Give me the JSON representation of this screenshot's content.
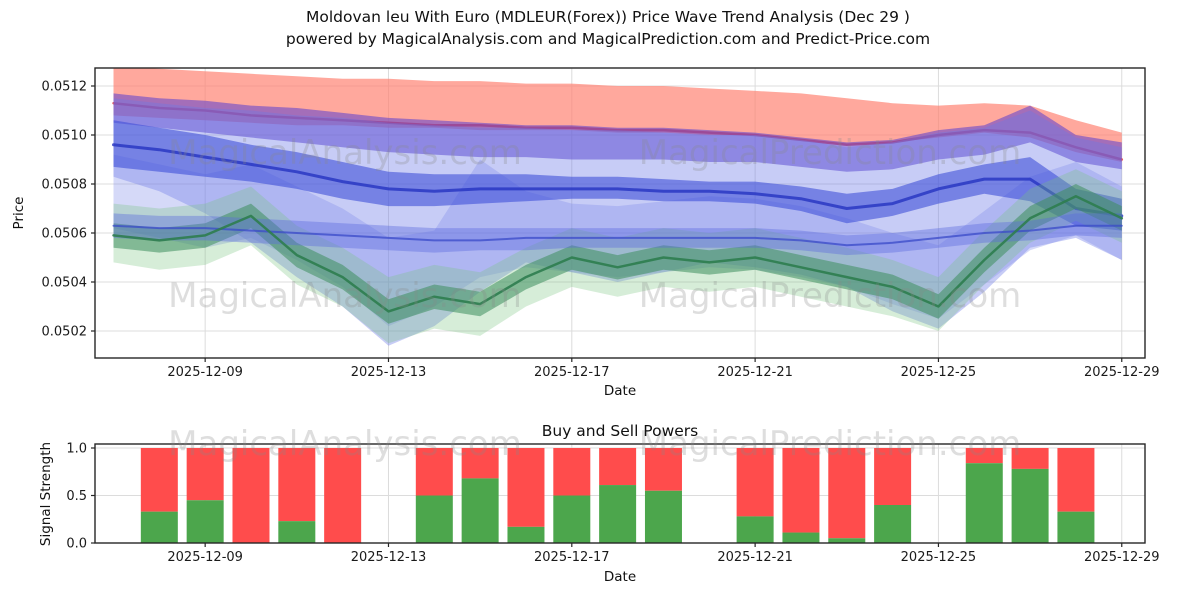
{
  "title": {
    "line1": "Moldovan leu With Euro (MDLEUR(Forex)) Price Wave Trend Analysis (Dec 29 )",
    "line2": "powered by MagicalAnalysis.com and MagicalPrediction.com and Predict-Price.com"
  },
  "watermarks": {
    "left_text": "MagicalAnalysis.com",
    "right_text": "MagicalPrediction.com"
  },
  "chart_data": [
    {
      "type": "area",
      "name": "price-wave-trend",
      "axis": {
        "ylabel": "Price",
        "xlabel": "Date"
      },
      "ylim": [
        0.0501,
        0.05127
      ],
      "grid": true,
      "x_dates": [
        "2025-12-07",
        "2025-12-08",
        "2025-12-09",
        "2025-12-10",
        "2025-12-11",
        "2025-12-12",
        "2025-12-13",
        "2025-12-14",
        "2025-12-15",
        "2025-12-16",
        "2025-12-17",
        "2025-12-18",
        "2025-12-19",
        "2025-12-20",
        "2025-12-21",
        "2025-12-22",
        "2025-12-23",
        "2025-12-24",
        "2025-12-25",
        "2025-12-26",
        "2025-12-27",
        "2025-12-28",
        "2025-12-29"
      ],
      "xticks": [
        {
          "i": 2,
          "label": "2025-12-09"
        },
        {
          "i": 6,
          "label": "2025-12-13"
        },
        {
          "i": 10,
          "label": "2025-12-17"
        },
        {
          "i": 14,
          "label": "2025-12-21"
        },
        {
          "i": 18,
          "label": "2025-12-25"
        },
        {
          "i": 22,
          "label": "2025-12-29"
        }
      ],
      "yticks": [
        {
          "v": 0.0512,
          "label": "0.0512"
        },
        {
          "v": 0.051,
          "label": "0.0510"
        },
        {
          "v": 0.0508,
          "label": "0.0508"
        },
        {
          "v": 0.0506,
          "label": "0.0506"
        },
        {
          "v": 0.0504,
          "label": "0.0504"
        },
        {
          "v": 0.0502,
          "label": "0.0502"
        }
      ],
      "layers": [
        {
          "kind": "band",
          "name": "resistance-band-red",
          "color": "#ff7f6e",
          "opacity": 0.68,
          "upper": [
            0.05128,
            0.05127,
            0.05126,
            0.05125,
            0.05124,
            0.05123,
            0.05123,
            0.05122,
            0.05122,
            0.05121,
            0.05121,
            0.0512,
            0.0512,
            0.05119,
            0.05118,
            0.05117,
            0.05115,
            0.05113,
            0.05112,
            0.05113,
            0.05112,
            0.05106,
            0.05101
          ],
          "lower": [
            0.05108,
            0.05107,
            0.05106,
            0.05105,
            0.05104,
            0.05104,
            0.05103,
            0.05103,
            0.05102,
            0.05102,
            0.05102,
            0.05101,
            0.05101,
            0.051,
            0.051,
            0.05098,
            0.05096,
            0.05097,
            0.05099,
            0.05101,
            0.05099,
            0.05093,
            0.05089
          ]
        },
        {
          "kind": "line",
          "name": "red-trend-line",
          "color": "#e84040",
          "width": 2.5,
          "opacity": 0.85,
          "values": [
            0.05113,
            0.05111,
            0.0511,
            0.05108,
            0.05107,
            0.05106,
            0.05105,
            0.05104,
            0.05104,
            0.05103,
            0.05103,
            0.05102,
            0.05102,
            0.05101,
            0.051,
            0.05098,
            0.05096,
            0.05097,
            0.051,
            0.05102,
            0.05101,
            0.05095,
            0.0509
          ]
        },
        {
          "kind": "band",
          "name": "violet-band",
          "color": "#6847cc",
          "opacity": 0.6,
          "upper": [
            0.05117,
            0.05115,
            0.05114,
            0.05112,
            0.05111,
            0.05109,
            0.05107,
            0.05106,
            0.05105,
            0.05104,
            0.05104,
            0.05103,
            0.05103,
            0.05102,
            0.05101,
            0.05099,
            0.05097,
            0.05098,
            0.05102,
            0.05104,
            0.05112,
            0.051,
            0.05097
          ],
          "lower": [
            0.05105,
            0.05103,
            0.05101,
            0.05099,
            0.05097,
            0.05095,
            0.05093,
            0.05092,
            0.05091,
            0.05091,
            0.0509,
            0.0509,
            0.0509,
            0.05089,
            0.05089,
            0.05087,
            0.05085,
            0.05086,
            0.0509,
            0.05092,
            0.05097,
            0.05089,
            0.05086
          ]
        },
        {
          "kind": "band",
          "name": "blue-band-wide",
          "color": "#6b79e8",
          "opacity": 0.38,
          "upper": [
            0.05115,
            0.05113,
            0.05111,
            0.0511,
            0.05108,
            0.05107,
            0.05105,
            0.05104,
            0.05103,
            0.05103,
            0.05102,
            0.05102,
            0.05101,
            0.051,
            0.051,
            0.05098,
            0.05095,
            0.05097,
            0.05101,
            0.05103,
            0.0511,
            0.05099,
            0.05095
          ],
          "lower": [
            0.05083,
            0.05077,
            0.05068,
            0.05056,
            0.05042,
            0.0503,
            0.05014,
            0.05022,
            0.05036,
            0.05048,
            0.05044,
            0.0504,
            0.05044,
            0.05048,
            0.05046,
            0.05043,
            0.05038,
            0.05028,
            0.05021,
            0.05036,
            0.05054,
            0.05058,
            0.05049
          ]
        },
        {
          "kind": "band",
          "name": "blue-band-mid",
          "color": "#7b88ea",
          "opacity": 0.32,
          "upper": [
            0.05092,
            0.05088,
            0.05084,
            0.05088,
            0.05079,
            0.0507,
            0.05058,
            0.05061,
            0.0509,
            0.05077,
            0.05072,
            0.05071,
            0.05073,
            0.05075,
            0.05074,
            0.05071,
            0.05066,
            0.0506,
            0.05055,
            0.05069,
            0.05083,
            0.05089,
            0.05079
          ],
          "lower": [
            0.05062,
            0.05058,
            0.05054,
            0.05058,
            0.05049,
            0.05038,
            0.05022,
            0.0503,
            0.05042,
            0.05046,
            0.05044,
            0.05042,
            0.05044,
            0.05046,
            0.05045,
            0.05042,
            0.05038,
            0.05031,
            0.05025,
            0.05039,
            0.05053,
            0.05059,
            0.05049
          ]
        },
        {
          "kind": "band",
          "name": "blue-band-core",
          "color": "#3f50d8",
          "opacity": 0.6,
          "upper": [
            0.05106,
            0.05103,
            0.051,
            0.05096,
            0.05093,
            0.05089,
            0.05085,
            0.05084,
            0.05084,
            0.05084,
            0.05083,
            0.05083,
            0.05082,
            0.05081,
            0.05081,
            0.05079,
            0.05076,
            0.05078,
            0.05084,
            0.05088,
            0.05091,
            0.05078,
            0.05074
          ],
          "lower": [
            0.05087,
            0.05085,
            0.05083,
            0.05081,
            0.05078,
            0.05074,
            0.05071,
            0.05071,
            0.05072,
            0.05073,
            0.05074,
            0.05074,
            0.05073,
            0.05073,
            0.05072,
            0.05069,
            0.05064,
            0.05067,
            0.05072,
            0.05076,
            0.05073,
            0.05063,
            0.05061
          ]
        },
        {
          "kind": "line",
          "name": "blue-trend-line",
          "color": "#2633c0",
          "width": 3,
          "opacity": 0.8,
          "values": [
            0.05096,
            0.05094,
            0.05091,
            0.05088,
            0.05085,
            0.05081,
            0.05078,
            0.05077,
            0.05078,
            0.05078,
            0.05078,
            0.05078,
            0.05077,
            0.05077,
            0.05076,
            0.05074,
            0.0507,
            0.05072,
            0.05078,
            0.05082,
            0.05082,
            0.0507,
            0.05067
          ]
        },
        {
          "kind": "band",
          "name": "green-band-wide",
          "color": "#77c47d",
          "opacity": 0.3,
          "upper": [
            0.05072,
            0.0507,
            0.05072,
            0.05079,
            0.05063,
            0.05054,
            0.05042,
            0.05047,
            0.05044,
            0.05054,
            0.05062,
            0.05058,
            0.05062,
            0.0506,
            0.05062,
            0.05058,
            0.05054,
            0.05049,
            0.05042,
            0.05061,
            0.05078,
            0.05086,
            0.05077
          ],
          "lower": [
            0.05048,
            0.05045,
            0.05047,
            0.05055,
            0.05039,
            0.0503,
            0.05015,
            0.05021,
            0.05018,
            0.0503,
            0.05038,
            0.05034,
            0.05038,
            0.05036,
            0.05038,
            0.05034,
            0.0503,
            0.05026,
            0.0502,
            0.05039,
            0.05056,
            0.05065,
            0.05056
          ]
        },
        {
          "kind": "band",
          "name": "green-band-core",
          "color": "#3e8e5e",
          "opacity": 0.55,
          "upper": [
            0.05064,
            0.05062,
            0.05064,
            0.05072,
            0.05056,
            0.05047,
            0.05033,
            0.05039,
            0.05036,
            0.05047,
            0.05055,
            0.05051,
            0.05055,
            0.05053,
            0.05055,
            0.05051,
            0.05047,
            0.05043,
            0.05035,
            0.05054,
            0.05071,
            0.0508,
            0.05071
          ],
          "lower": [
            0.05054,
            0.05052,
            0.05054,
            0.05062,
            0.05046,
            0.05037,
            0.05023,
            0.05029,
            0.05026,
            0.05037,
            0.05045,
            0.05041,
            0.05045,
            0.05043,
            0.05045,
            0.05041,
            0.05037,
            0.05033,
            0.05025,
            0.05044,
            0.05061,
            0.0507,
            0.05061
          ]
        },
        {
          "kind": "band",
          "name": "blue-band-secondary",
          "color": "#5a68de",
          "opacity": 0.4,
          "upper": [
            0.05068,
            0.05067,
            0.05067,
            0.05066,
            0.05065,
            0.05064,
            0.05063,
            0.05062,
            0.05062,
            0.05062,
            0.05062,
            0.05062,
            0.05062,
            0.05062,
            0.05062,
            0.05061,
            0.05059,
            0.0506,
            0.05062,
            0.05064,
            0.05065,
            0.05068,
            0.05068
          ],
          "lower": [
            0.05058,
            0.05057,
            0.05057,
            0.05056,
            0.05055,
            0.05054,
            0.05053,
            0.05052,
            0.05053,
            0.05053,
            0.05054,
            0.05054,
            0.05054,
            0.05054,
            0.05054,
            0.05053,
            0.05051,
            0.05052,
            0.05054,
            0.05056,
            0.05057,
            0.05059,
            0.05058
          ]
        },
        {
          "kind": "line",
          "name": "blue-support-line",
          "color": "#3a49c8",
          "width": 2,
          "opacity": 0.75,
          "values": [
            0.05063,
            0.05062,
            0.05062,
            0.05061,
            0.0506,
            0.05059,
            0.05058,
            0.05057,
            0.05057,
            0.05058,
            0.05058,
            0.05058,
            0.05058,
            0.05058,
            0.05058,
            0.05057,
            0.05055,
            0.05056,
            0.05058,
            0.0506,
            0.05061,
            0.05063,
            0.05063
          ]
        },
        {
          "kind": "line",
          "name": "green-price-line",
          "color": "#2e7d4f",
          "width": 2.5,
          "opacity": 0.9,
          "values": [
            0.05059,
            0.05057,
            0.05059,
            0.05067,
            0.05051,
            0.05042,
            0.05028,
            0.05034,
            0.05031,
            0.05042,
            0.0505,
            0.05046,
            0.0505,
            0.05048,
            0.0505,
            0.05046,
            0.05042,
            0.05038,
            0.0503,
            0.05049,
            0.05066,
            0.05075,
            0.05066
          ]
        }
      ]
    },
    {
      "type": "bar",
      "name": "buy-sell-powers",
      "title": "Buy and Sell Powers",
      "axis": {
        "ylabel": "Signal Strength",
        "xlabel": "Date"
      },
      "ylim": [
        0,
        1.04
      ],
      "grid": true,
      "colors": {
        "buy": "#4ca64c",
        "sell": "#ff4c4c"
      },
      "yticks": [
        {
          "v": 0.0,
          "label": "0.0"
        },
        {
          "v": 0.5,
          "label": "0.5"
        },
        {
          "v": 1.0,
          "label": "1.0"
        }
      ],
      "xticks": [
        {
          "i": 2,
          "label": "2025-12-09"
        },
        {
          "i": 6,
          "label": "2025-12-13"
        },
        {
          "i": 10,
          "label": "2025-12-17"
        },
        {
          "i": 14,
          "label": "2025-12-21"
        },
        {
          "i": 18,
          "label": "2025-12-25"
        },
        {
          "i": 22,
          "label": "2025-12-29"
        }
      ],
      "bars": [
        {
          "date": "2025-12-08",
          "buy": 0.33,
          "sell": 0.67
        },
        {
          "date": "2025-12-09",
          "buy": 0.45,
          "sell": 0.55
        },
        {
          "date": "2025-12-10",
          "buy": 0.0,
          "sell": 1.0
        },
        {
          "date": "2025-12-11",
          "buy": 0.23,
          "sell": 0.77
        },
        {
          "date": "2025-12-12",
          "buy": 0.0,
          "sell": 1.0
        },
        {
          "date": "2025-12-14",
          "buy": 0.5,
          "sell": 0.5
        },
        {
          "date": "2025-12-15",
          "buy": 0.68,
          "sell": 0.32
        },
        {
          "date": "2025-12-16",
          "buy": 0.17,
          "sell": 0.83
        },
        {
          "date": "2025-12-17",
          "buy": 0.5,
          "sell": 0.5
        },
        {
          "date": "2025-12-18",
          "buy": 0.61,
          "sell": 0.39
        },
        {
          "date": "2025-12-19",
          "buy": 0.55,
          "sell": 0.45
        },
        {
          "date": "2025-12-21",
          "buy": 0.28,
          "sell": 0.72
        },
        {
          "date": "2025-12-22",
          "buy": 0.11,
          "sell": 0.89
        },
        {
          "date": "2025-12-23",
          "buy": 0.05,
          "sell": 0.95
        },
        {
          "date": "2025-12-24",
          "buy": 0.4,
          "sell": 0.6
        },
        {
          "date": "2025-12-26",
          "buy": 0.84,
          "sell": 0.16
        },
        {
          "date": "2025-12-27",
          "buy": 0.78,
          "sell": 0.22
        },
        {
          "date": "2025-12-28",
          "buy": 0.33,
          "sell": 0.67
        }
      ]
    }
  ]
}
